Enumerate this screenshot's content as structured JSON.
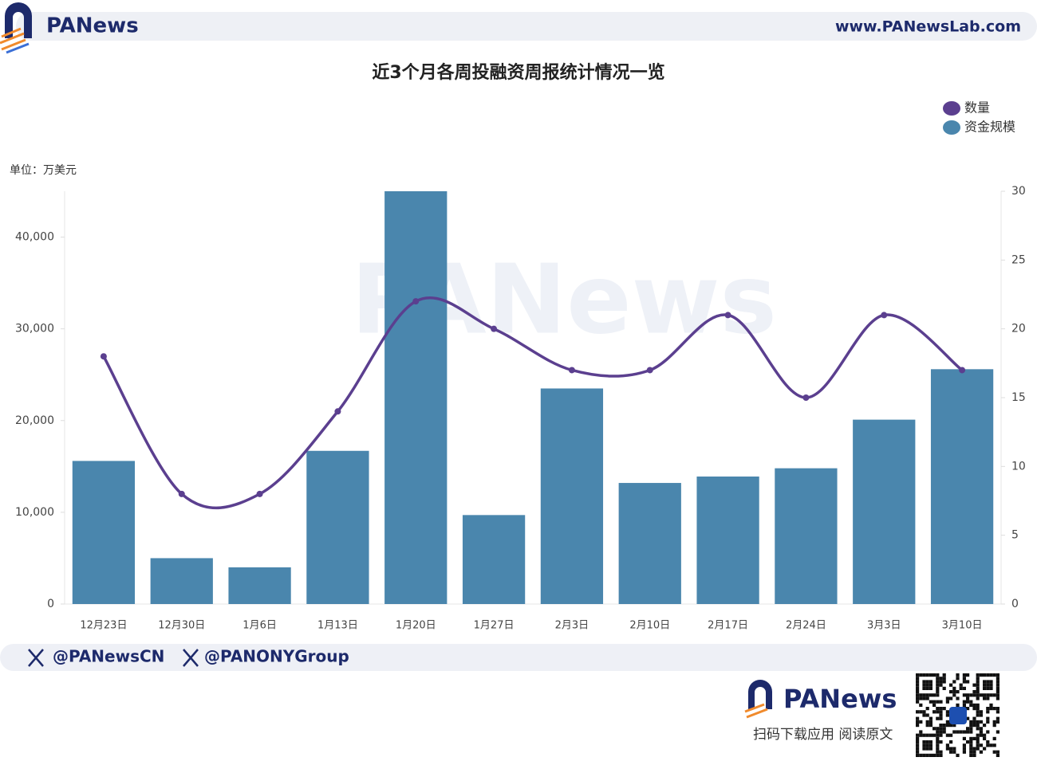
{
  "header": {
    "brand": "PANews",
    "url": "www.PANewsLab.com"
  },
  "chart_data": {
    "type": "bar",
    "title": "近3个月各周投融资周报统计情况一览",
    "y_label": "单位：万美元",
    "watermark": "PANews",
    "categories": [
      "12月23日",
      "12月30日",
      "1月6日",
      "1月13日",
      "1月20日",
      "1月27日",
      "2月3日",
      "2月10日",
      "2月17日",
      "2月24日",
      "3月3日",
      "3月10日"
    ],
    "series": [
      {
        "name": "数量",
        "type": "line",
        "axis": "y2",
        "color": "#5b3f8f",
        "values": [
          18,
          8,
          8,
          14,
          22,
          20,
          17,
          17,
          21,
          15,
          21,
          17
        ]
      },
      {
        "name": "资金规模",
        "type": "bar",
        "color": "#4a86ad",
        "values": [
          15600,
          5000,
          4000,
          16700,
          45000,
          9700,
          23500,
          13200,
          13900,
          14800,
          20100,
          25600
        ]
      }
    ],
    "ylim": [
      0,
      45000
    ],
    "yticks": [
      0,
      {
        "value": 10000,
        "label": "10,000"
      },
      {
        "value": 20000,
        "label": "20,000"
      },
      {
        "value": 30000,
        "label": "30,000"
      },
      {
        "value": 40000,
        "label": "40,000"
      }
    ],
    "y2lim": [
      0,
      30
    ],
    "y2ticks": [
      0,
      5,
      10,
      15,
      20,
      25,
      30
    ],
    "legend": "top-right",
    "grid": false
  },
  "footer": {
    "handles": [
      "@PANewsCN",
      "@PANONYGroup"
    ],
    "brand": "PANews",
    "download": "扫码下载应用  阅读原文"
  }
}
